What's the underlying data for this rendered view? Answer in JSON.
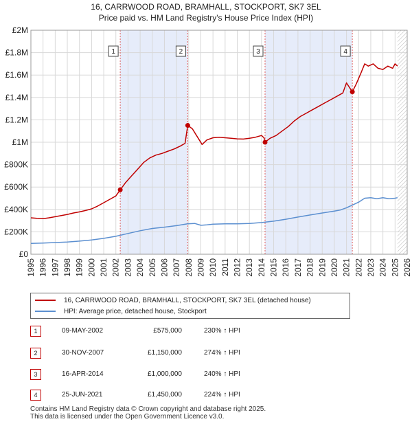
{
  "title": {
    "line1": "16, CARRWOOD ROAD, BRAMHALL, STOCKPORT, SK7 3EL",
    "line2": "Price paid vs. HM Land Registry's House Price Index (HPI)"
  },
  "chart_data": {
    "type": "line",
    "title": "16, CARRWOOD ROAD, BRAMHALL, STOCKPORT, SK7 3EL — Price paid vs. HM Land Registry's House Price Index (HPI)",
    "xlabel": "",
    "ylabel": "",
    "xlim": [
      1995,
      2026
    ],
    "ylim": [
      0,
      2000000
    ],
    "x_ticks": [
      1995,
      1996,
      1997,
      1998,
      1999,
      2000,
      2001,
      2002,
      2003,
      2004,
      2005,
      2006,
      2007,
      2008,
      2009,
      2010,
      2011,
      2012,
      2013,
      2014,
      2015,
      2016,
      2017,
      2018,
      2019,
      2020,
      2021,
      2022,
      2023,
      2024,
      2025,
      2026
    ],
    "y_ticks": [
      {
        "value": 0,
        "label": "£0"
      },
      {
        "value": 200000,
        "label": "£200K"
      },
      {
        "value": 400000,
        "label": "£400K"
      },
      {
        "value": 600000,
        "label": "£600K"
      },
      {
        "value": 800000,
        "label": "£800K"
      },
      {
        "value": 1000000,
        "label": "£1M"
      },
      {
        "value": 1200000,
        "label": "£1.2M"
      },
      {
        "value": 1400000,
        "label": "£1.4M"
      },
      {
        "value": 1600000,
        "label": "£1.6M"
      },
      {
        "value": 1800000,
        "label": "£1.8M"
      },
      {
        "value": 2000000,
        "label": "£2M"
      }
    ],
    "grid": true,
    "colors": {
      "property": "#c00000",
      "hpi": "#5b8fd0",
      "shade": "#e6ecfa",
      "marker_line": "#e06060",
      "future_hatch": "#888888"
    },
    "series": [
      {
        "name": "16, CARRWOOD ROAD, BRAMHALL, STOCKPORT, SK7 3EL (detached house)",
        "x": [
          1995.0,
          1995.5,
          1996.0,
          1996.5,
          1997.0,
          1997.5,
          1998.0,
          1998.5,
          1999.0,
          1999.5,
          2000.0,
          2000.5,
          2001.0,
          2001.5,
          2002.0,
          2002.36,
          2002.8,
          2003.3,
          2003.8,
          2004.3,
          2004.8,
          2005.3,
          2005.8,
          2006.3,
          2006.8,
          2007.3,
          2007.7,
          2007.92,
          2008.3,
          2008.7,
          2009.1,
          2009.5,
          2010.0,
          2010.5,
          2011.0,
          2011.5,
          2012.0,
          2012.5,
          2013.0,
          2013.5,
          2014.0,
          2014.2,
          2014.29,
          2014.7,
          2015.2,
          2015.7,
          2016.2,
          2016.7,
          2017.2,
          2017.7,
          2018.2,
          2018.7,
          2019.2,
          2019.7,
          2020.2,
          2020.7,
          2021.0,
          2021.3,
          2021.48,
          2021.8,
          2022.2,
          2022.5,
          2022.8,
          2023.2,
          2023.6,
          2024.0,
          2024.4,
          2024.8,
          2025.0,
          2025.2
        ],
        "values": [
          325000,
          320000,
          318000,
          325000,
          335000,
          345000,
          355000,
          368000,
          378000,
          390000,
          405000,
          430000,
          460000,
          490000,
          520000,
          575000,
          640000,
          700000,
          760000,
          820000,
          860000,
          885000,
          900000,
          920000,
          940000,
          965000,
          990000,
          1150000,
          1120000,
          1050000,
          980000,
          1020000,
          1040000,
          1045000,
          1040000,
          1035000,
          1030000,
          1028000,
          1035000,
          1045000,
          1060000,
          1040000,
          1000000,
          1035000,
          1060000,
          1100000,
          1140000,
          1190000,
          1230000,
          1260000,
          1290000,
          1320000,
          1350000,
          1380000,
          1410000,
          1440000,
          1530000,
          1480000,
          1450000,
          1520000,
          1620000,
          1700000,
          1680000,
          1700000,
          1660000,
          1650000,
          1680000,
          1660000,
          1700000,
          1680000
        ]
      },
      {
        "name": "HPI: Average price, detached house, Stockport",
        "x": [
          1995.0,
          1996.0,
          1997.0,
          1998.0,
          1999.0,
          2000.0,
          2001.0,
          2002.0,
          2003.0,
          2004.0,
          2005.0,
          2006.0,
          2007.0,
          2007.9,
          2008.5,
          2009.0,
          2009.5,
          2010.0,
          2011.0,
          2012.0,
          2013.0,
          2014.0,
          2015.0,
          2016.0,
          2017.0,
          2018.0,
          2019.0,
          2020.0,
          2020.5,
          2021.0,
          2021.5,
          2022.0,
          2022.5,
          2023.0,
          2023.5,
          2024.0,
          2024.5,
          2025.0,
          2025.2
        ],
        "values": [
          97000,
          100000,
          104000,
          109000,
          117000,
          127000,
          142000,
          160000,
          185000,
          210000,
          230000,
          242000,
          255000,
          272000,
          275000,
          258000,
          262000,
          268000,
          272000,
          272000,
          275000,
          283000,
          295000,
          312000,
          332000,
          350000,
          368000,
          385000,
          395000,
          415000,
          440000,
          465000,
          500000,
          505000,
          495000,
          505000,
          495000,
          500000,
          505000
        ]
      }
    ],
    "sales": [
      {
        "label": "1",
        "x": 2002.36,
        "date": "09-MAY-2002",
        "price": "£575,000",
        "value": 575000,
        "hpi": "230% ↑ HPI"
      },
      {
        "label": "2",
        "x": 2007.92,
        "date": "30-NOV-2007",
        "price": "£1,150,000",
        "value": 1150000,
        "hpi": "274% ↑ HPI"
      },
      {
        "label": "3",
        "x": 2014.29,
        "date": "16-APR-2014",
        "price": "£1,000,000",
        "value": 1000000,
        "hpi": "240% ↑ HPI"
      },
      {
        "label": "4",
        "x": 2021.48,
        "date": "25-JUN-2021",
        "price": "£1,450,000",
        "value": 1450000,
        "hpi": "224% ↑ HPI"
      }
    ],
    "shaded_spans": [
      [
        2002.36,
        2007.92
      ],
      [
        2014.29,
        2021.48
      ]
    ],
    "future_from": 2025.2
  },
  "legend": {
    "property_label": "16, CARRWOOD ROAD, BRAMHALL, STOCKPORT, SK7 3EL (detached house)",
    "hpi_label": "HPI: Average price, detached house, Stockport"
  },
  "footer": {
    "line1": "Contains HM Land Registry data © Crown copyright and database right 2025.",
    "line2": "This data is licensed under the Open Government Licence v3.0."
  }
}
